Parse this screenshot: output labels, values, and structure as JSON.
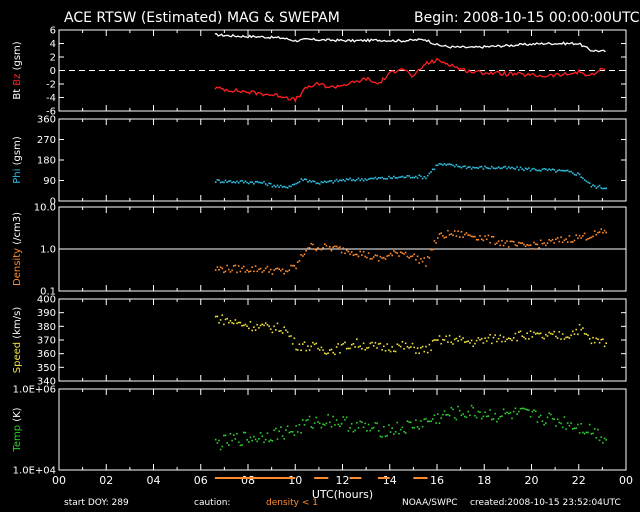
{
  "header": {
    "title": "ACE RTSW (Estimated) MAG & SWEPAM",
    "begin": "Begin: 2008-10-15 00:00:00UTC"
  },
  "footer": {
    "start_doy": "start DOY: 289",
    "caution": "caution:",
    "density_note": "density < 1",
    "source": "NOAA/SWPC",
    "created": "created:2008-10-15 23:52:04UTC"
  },
  "colors": {
    "bt": "#ffffff",
    "bz": "#ff2020",
    "phi": "#30c0e0",
    "density": "#ff8c30",
    "speed": "#f0e040",
    "temp": "#30d030",
    "caution_bar": "#ff8c30"
  },
  "chart_data": [
    {
      "type": "line",
      "panel": "mag",
      "ylabel": [
        "Bt",
        "Bz",
        "(gsm)"
      ],
      "ylim": [
        -6,
        6
      ],
      "y_ticks": [
        "6",
        "4",
        "2",
        "0",
        "-2",
        "-4",
        "-6"
      ],
      "dashed_zero_line": true,
      "series": [
        {
          "name": "Bt",
          "color": "#ffffff",
          "x": [
            6.6,
            7.5,
            8.5,
            9.5,
            10.0,
            10.5,
            11.5,
            12.5,
            13.5,
            14.5,
            15.5,
            16.0,
            16.5,
            17.5,
            18.5,
            19.5,
            20.5,
            21.5,
            22.0,
            22.5,
            23.2
          ],
          "y": [
            5.3,
            5.1,
            5.0,
            4.8,
            4.4,
            4.6,
            4.5,
            4.4,
            4.5,
            4.4,
            4.6,
            3.8,
            3.5,
            3.4,
            3.6,
            3.8,
            4.0,
            4.0,
            4.0,
            3.0,
            2.8
          ]
        },
        {
          "name": "Bz",
          "color": "#ff2020",
          "x": [
            6.6,
            7.5,
            8.5,
            9.5,
            10.0,
            10.5,
            11.0,
            11.5,
            12.5,
            13.0,
            13.5,
            14.0,
            14.5,
            15.0,
            15.5,
            16.0,
            16.5,
            17.0,
            17.5,
            18.5,
            19.5,
            20.5,
            21.5,
            22.0,
            22.5,
            23.2
          ],
          "y": [
            -2.6,
            -3.0,
            -3.4,
            -3.8,
            -4.4,
            -2.5,
            -2.0,
            -2.5,
            -1.8,
            -1.2,
            -2.0,
            -0.5,
            0.5,
            -1.0,
            1.0,
            1.5,
            1.0,
            0.2,
            -0.2,
            -0.4,
            -0.6,
            -0.8,
            -0.6,
            -0.2,
            -0.8,
            0.6
          ]
        }
      ]
    },
    {
      "type": "scatter",
      "panel": "phi",
      "ylabel": [
        "Phi",
        "(gsm)"
      ],
      "ylim": [
        0,
        360
      ],
      "y_ticks": [
        "360",
        "270",
        "180",
        "90",
        "0"
      ],
      "series": [
        {
          "name": "Phi",
          "color": "#30c0e0",
          "x": [
            6.6,
            7.5,
            8.5,
            9.5,
            10.0,
            10.3,
            11.0,
            12.0,
            13.0,
            14.0,
            15.0,
            15.5,
            16.0,
            16.5,
            17.5,
            18.5,
            19.5,
            20.5,
            21.5,
            22.0,
            22.5,
            23.2
          ],
          "y": [
            92,
            88,
            85,
            62,
            80,
            100,
            82,
            95,
            100,
            105,
            112,
            108,
            165,
            160,
            150,
            150,
            145,
            140,
            132,
            120,
            70,
            60
          ]
        }
      ]
    },
    {
      "type": "scatter",
      "panel": "density",
      "ylabel": [
        "Density",
        "(/cm3)"
      ],
      "yscale": "log",
      "ylim": [
        0.1,
        10
      ],
      "y_ticks": [
        "10.0",
        "1.0",
        "0.1"
      ],
      "reference_line": 1.0,
      "series": [
        {
          "name": "Density",
          "color": "#ff8c30",
          "x": [
            6.6,
            7.5,
            8.5,
            9.5,
            10.0,
            10.5,
            11.5,
            12.5,
            13.5,
            14.5,
            15.5,
            16.0,
            16.5,
            17.5,
            18.5,
            19.5,
            20.5,
            21.5,
            22.5,
            23.2
          ],
          "y": [
            0.35,
            0.35,
            0.35,
            0.3,
            0.4,
            1.2,
            1.1,
            0.9,
            0.6,
            0.9,
            0.5,
            2.0,
            2.4,
            2.2,
            1.6,
            1.2,
            1.4,
            1.8,
            2.2,
            2.8
          ]
        }
      ]
    },
    {
      "type": "scatter",
      "panel": "speed",
      "ylabel": [
        "Speed",
        "(km/s)"
      ],
      "ylim": [
        340,
        400
      ],
      "y_ticks": [
        "400",
        "390",
        "380",
        "370",
        "360",
        "350",
        "340"
      ],
      "series": [
        {
          "name": "Speed",
          "color": "#f0e040",
          "x": [
            6.6,
            7.5,
            8.5,
            9.5,
            10.0,
            10.5,
            11.5,
            12.5,
            13.5,
            14.5,
            15.5,
            16.0,
            16.5,
            17.5,
            18.5,
            19.5,
            20.5,
            21.5,
            22.0,
            22.5,
            23.2
          ],
          "y": [
            387,
            383,
            380,
            379,
            367,
            366,
            363,
            368,
            365,
            366,
            363,
            370,
            371,
            369,
            372,
            374,
            373,
            374,
            379,
            370,
            369
          ]
        }
      ]
    },
    {
      "type": "scatter",
      "panel": "temp",
      "ylabel": [
        "Temp",
        "(K)"
      ],
      "yscale": "log",
      "ylim": [
        10000,
        1000000
      ],
      "y_ticks": [
        "1.0E+06",
        "1.0E+04"
      ],
      "series": [
        {
          "name": "Temp",
          "color": "#30d030",
          "x": [
            6.6,
            7.5,
            8.5,
            9.5,
            10.0,
            10.5,
            11.5,
            12.5,
            13.5,
            14.5,
            15.5,
            16.0,
            16.5,
            17.5,
            18.5,
            19.5,
            20.5,
            21.5,
            22.5,
            23.2
          ],
          "y": [
            45000,
            60000,
            70000,
            90000,
            100000,
            150000,
            180000,
            130000,
            100000,
            110000,
            160000,
            200000,
            250000,
            280000,
            230000,
            250000,
            200000,
            150000,
            100000,
            60000
          ]
        }
      ]
    }
  ],
  "x_axis": {
    "xlabel": "UTC(hours)",
    "xlim": [
      0,
      24
    ],
    "tick_labels": [
      "00",
      "02",
      "04",
      "06",
      "08",
      "10",
      "12",
      "14",
      "16",
      "18",
      "20",
      "22",
      "00"
    ]
  },
  "caution_intervals": [
    [
      6.6,
      10.0
    ],
    [
      10.8,
      11.4
    ],
    [
      12.3,
      12.8
    ],
    [
      13.5,
      14.0
    ],
    [
      15.0,
      15.6
    ]
  ]
}
